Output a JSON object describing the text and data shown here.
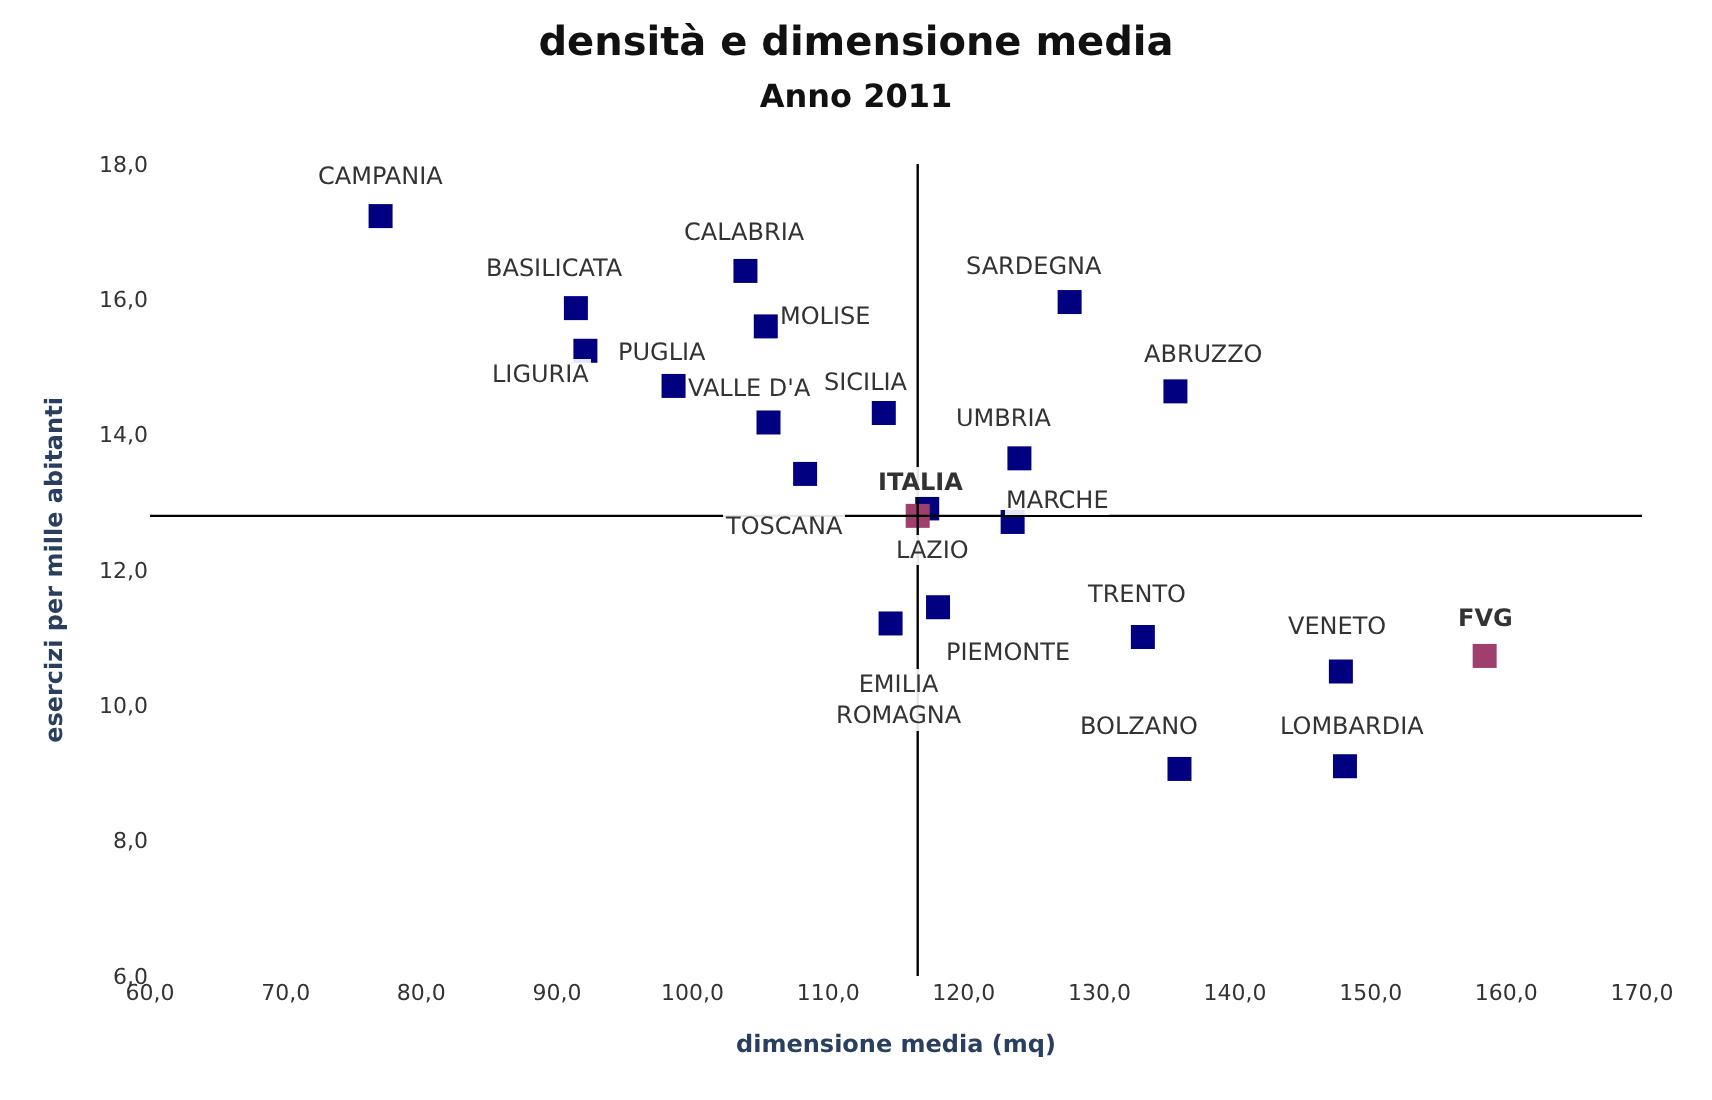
{
  "chart_data": {
    "type": "scatter",
    "title": "densità e dimensione media",
    "subtitle": "Anno 2011",
    "xlabel": "dimensione media (mq)",
    "ylabel": "esercizi per mille abitanti",
    "series": [
      {
        "color": "#000080",
        "x": [
          77.0,
          103.9,
          91.4,
          105.4,
          92.1,
          98.6,
          105.6,
          108.3,
          114.1,
          127.8,
          135.6,
          124.1,
          117.3,
          123.6,
          118.1,
          114.6,
          133.2,
          147.8,
          135.9,
          148.1
        ],
        "values": [
          17.23,
          16.42,
          15.87,
          15.6,
          15.24,
          14.72,
          14.18,
          13.42,
          14.32,
          15.96,
          14.64,
          13.65,
          12.91,
          12.71,
          11.45,
          11.21,
          11.01,
          10.5,
          9.06,
          9.1
        ]
      },
      {
        "color": "#9e3f6e",
        "x": [
          116.6,
          158.4
        ],
        "values": [
          12.8,
          10.73
        ]
      }
    ],
    "marker": "square",
    "xlim": [
      60,
      170
    ],
    "ylim": [
      6,
      18
    ],
    "xticks": [
      {
        "value": 60,
        "label": "60,0"
      },
      {
        "value": 70,
        "label": "70,0"
      },
      {
        "value": 80,
        "label": "80,0"
      },
      {
        "value": 90,
        "label": "90,0"
      },
      {
        "value": 100,
        "label": "100,0"
      },
      {
        "value": 110,
        "label": "110,0"
      },
      {
        "value": 120,
        "label": "120,0"
      },
      {
        "value": 130,
        "label": "130,0"
      },
      {
        "value": 140,
        "label": "140,0"
      },
      {
        "value": 150,
        "label": "150,0"
      },
      {
        "value": 160,
        "label": "160,0"
      },
      {
        "value": 170,
        "label": "170,0"
      }
    ],
    "yticks": [
      {
        "value": 6,
        "label": "6,0"
      },
      {
        "value": 8,
        "label": "8,0"
      },
      {
        "value": 10,
        "label": "10,0"
      },
      {
        "value": 12,
        "label": "12,0"
      },
      {
        "value": 14,
        "label": "14,0"
      },
      {
        "value": 16,
        "label": "16,0"
      },
      {
        "value": 18,
        "label": "18,0"
      }
    ],
    "ref_lines": [
      {
        "axis": "x",
        "value": 116.6,
        "color": "#000000"
      },
      {
        "axis": "y",
        "value": 12.8,
        "color": "#000000"
      }
    ],
    "annotations": [
      {
        "text": "CAMPANIA",
        "x": 77.0,
        "y": 17.23
      },
      {
        "text": "CALABRIA",
        "x": 103.9,
        "y": 16.42
      },
      {
        "text": "BASILICATA",
        "x": 91.4,
        "y": 15.87
      },
      {
        "text": "MOLISE",
        "x": 105.4,
        "y": 15.6
      },
      {
        "text": "LIGURIA",
        "x": 92.1,
        "y": 15.24
      },
      {
        "text": "PUGLIA",
        "x": 98.6,
        "y": 14.72
      },
      {
        "text": "VALLE D'A",
        "x": 105.6,
        "y": 14.18
      },
      {
        "text": "TOSCANA",
        "x": 108.3,
        "y": 13.42
      },
      {
        "text": "SICILIA",
        "x": 114.1,
        "y": 14.32
      },
      {
        "text": "SARDEGNA",
        "x": 127.8,
        "y": 15.96
      },
      {
        "text": "ABRUZZO",
        "x": 135.6,
        "y": 14.64
      },
      {
        "text": "UMBRIA",
        "x": 124.1,
        "y": 13.65
      },
      {
        "text": "LAZIO",
        "x": 117.3,
        "y": 12.91
      },
      {
        "text": "MARCHE",
        "x": 123.6,
        "y": 12.71
      },
      {
        "text": "PIEMONTE",
        "x": 118.1,
        "y": 11.45
      },
      {
        "text": "EMILIA\nROMAGNA",
        "x": 114.6,
        "y": 11.21
      },
      {
        "text": "TRENTO",
        "x": 133.2,
        "y": 11.01
      },
      {
        "text": "VENETO",
        "x": 147.8,
        "y": 10.5
      },
      {
        "text": "BOLZANO",
        "x": 135.9,
        "y": 9.06
      },
      {
        "text": "LOMBARDIA",
        "x": 148.1,
        "y": 9.1
      },
      {
        "text": "ITALIA",
        "x": 116.6,
        "y": 12.8
      },
      {
        "text": "FVG",
        "x": 158.4,
        "y": 10.73
      }
    ]
  }
}
